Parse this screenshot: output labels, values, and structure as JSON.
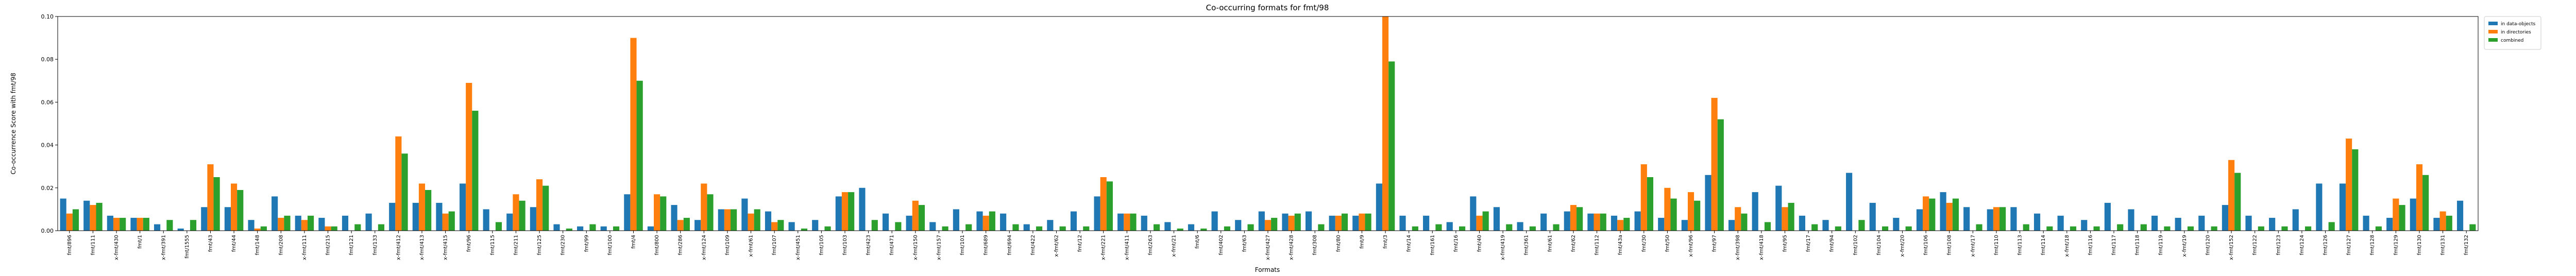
{
  "chart_data": {
    "type": "grouped_bar",
    "title": "Co-occurring formats for fmt/98",
    "x_label": "Formats",
    "y_label": "Co-occurrence Score with fmt/98",
    "categories": [
      "fmt/896",
      "fmt/111",
      "x-fmt/430",
      "fmt/1",
      "x-fmt/391",
      "fmt/1555",
      "fmt/43",
      "fmt/44",
      "fmt/148",
      "fmt/208",
      "x-fmt/111",
      "fmt/215",
      "fmt/121",
      "fmt/133",
      "x-fmt/412",
      "x-fmt/413",
      "x-fmt/415",
      "fmt/96",
      "fmt/115",
      "fmt/211",
      "fmt/125",
      "fmt/230",
      "fmt/99",
      "fmt/100",
      "fmt/4",
      "fmt/800",
      "fmt/286",
      "x-fmt/124",
      "fmt/109",
      "x-fmt/61",
      "fmt/107",
      "x-fmt/451",
      "fmt/105",
      "fmt/103",
      "fmt/423",
      "fmt/471",
      "x-fmt/150",
      "x-fmt/157",
      "fmt/101",
      "fmt/689",
      "fmt/694",
      "fmt/422",
      "x-fmt/62",
      "fmt/12",
      "x-fmt/221",
      "x-fmt/411",
      "fmt/263",
      "x-fmt/21",
      "fmt/6",
      "fmt/402",
      "fmt/63",
      "x-fmt/427",
      "x-fmt/428",
      "fmt/308",
      "fmt/80",
      "fmt/9",
      "fmt/3",
      "fmt/14",
      "fmt/161",
      "fmt/16",
      "fmt/40",
      "x-fmt/419",
      "fmt/361",
      "fmt/61",
      "fmt/62",
      "fmt/112",
      "fmt/43a",
      "fmt/30",
      "fmt/50",
      "x-fmt/96",
      "fmt/97",
      "x-fmt/398",
      "x-fmt/418",
      "fmt/95",
      "fmt/17",
      "fmt/94",
      "fmt/102",
      "fmt/104",
      "x-fmt/20",
      "fmt/106",
      "fmt/108",
      "x-fmt/17",
      "fmt/110",
      "fmt/113",
      "fmt/114",
      "x-fmt/18",
      "fmt/116",
      "fmt/117",
      "fmt/118",
      "fmt/119",
      "x-fmt/19",
      "fmt/120",
      "x-fmt/152",
      "fmt/122",
      "fmt/123",
      "fmt/124",
      "fmt/126",
      "fmt/127",
      "fmt/128",
      "fmt/129",
      "fmt/130",
      "fmt/131",
      "fmt/132"
    ],
    "series": [
      {
        "name": "in data-objects",
        "color": "#1f77b4",
        "values": [
          0.015,
          0.014,
          0.007,
          0.006,
          0.003,
          0.001,
          0.011,
          0.011,
          0.005,
          0.016,
          0.007,
          0.006,
          0.007,
          0.008,
          0.013,
          0.013,
          0.013,
          0.022,
          0.01,
          0.008,
          0.011,
          0.003,
          0.002,
          0.002,
          0.017,
          0.002,
          0.012,
          0.005,
          0.01,
          0.015,
          0.009,
          0.004,
          0.005,
          0.016,
          0.02,
          0.008,
          0.007,
          0.004,
          0.01,
          0.009,
          0.008,
          0.003,
          0.005,
          0.009,
          0.016,
          0.008,
          0.007,
          0.004,
          0.003,
          0.009,
          0.005,
          0.009,
          0.008,
          0.009,
          0.007,
          0.007,
          0.022,
          0.007,
          0.007,
          0.004,
          0.016,
          0.011,
          0.004,
          0.008,
          0.009,
          0.008,
          0.007,
          0.009,
          0.006,
          0.005,
          0.026,
          0.005,
          0.018,
          0.021,
          0.007,
          0.005,
          0.027,
          0.013,
          0.006,
          0.01,
          0.018,
          0.011,
          0.01,
          0.011,
          0.008,
          0.007,
          0.005,
          0.013,
          0.01,
          0.007,
          0.006,
          0.007,
          0.012,
          0.007,
          0.006,
          0.01,
          0.022,
          0.022,
          0.007,
          0.006,
          0.015,
          0.006,
          0.014
        ]
      },
      {
        "name": "in directories",
        "color": "#ff7f0e",
        "values": [
          0.008,
          0.012,
          0.006,
          0.006,
          0,
          0,
          0.031,
          0.022,
          0.001,
          0.006,
          0.005,
          0.002,
          0,
          0,
          0.044,
          0.022,
          0.008,
          0.069,
          0,
          0.017,
          0.024,
          0,
          0,
          0,
          0.09,
          0.017,
          0.005,
          0.022,
          0.01,
          0.008,
          0.004,
          0,
          0,
          0.018,
          0,
          0,
          0.014,
          0,
          0,
          0.007,
          0,
          0,
          0,
          0,
          0.025,
          0.008,
          0,
          0,
          0,
          0,
          0,
          0.005,
          0.007,
          0,
          0.007,
          0.008,
          0.1,
          0,
          0,
          0,
          0.007,
          0,
          0,
          0,
          0.012,
          0.008,
          0.005,
          0.031,
          0.02,
          0.018,
          0.062,
          0.011,
          0,
          0.011,
          0,
          0,
          0,
          0,
          0,
          0.016,
          0.013,
          0,
          0.011,
          0,
          0,
          0,
          0,
          0,
          0,
          0,
          0,
          0,
          0.033,
          0,
          0,
          0,
          0,
          0.043,
          0,
          0.015,
          0.031,
          0.009,
          0
        ]
      },
      {
        "name": "combined",
        "color": "#2ca02c",
        "values": [
          0.01,
          0.013,
          0.006,
          0.006,
          0.005,
          0.005,
          0.025,
          0.019,
          0.002,
          0.007,
          0.007,
          0.002,
          0.003,
          0.003,
          0.036,
          0.019,
          0.009,
          0.056,
          0.004,
          0.014,
          0.021,
          0.001,
          0.003,
          0.002,
          0.07,
          0.016,
          0.006,
          0.017,
          0.01,
          0.01,
          0.005,
          0.001,
          0.002,
          0.018,
          0.005,
          0.004,
          0.012,
          0.002,
          0.003,
          0.009,
          0.003,
          0.002,
          0.002,
          0.002,
          0.023,
          0.008,
          0.003,
          0.001,
          0.001,
          0.002,
          0.003,
          0.006,
          0.008,
          0.003,
          0.008,
          0.008,
          0.079,
          0.002,
          0.003,
          0.002,
          0.009,
          0.003,
          0.002,
          0.003,
          0.011,
          0.008,
          0.006,
          0.025,
          0.015,
          0.014,
          0.052,
          0.008,
          0.004,
          0.013,
          0.003,
          0.002,
          0.005,
          0.002,
          0.002,
          0.015,
          0.015,
          0.003,
          0.011,
          0.003,
          0.002,
          0.002,
          0.002,
          0.003,
          0.003,
          0.002,
          0.002,
          0.002,
          0.027,
          0.002,
          0.002,
          0.002,
          0.004,
          0.038,
          0.002,
          0.012,
          0.026,
          0.007,
          0.003
        ]
      }
    ],
    "ylim": [
      0,
      0.1
    ],
    "yticks": [
      {
        "value": 0,
        "label": "0.00"
      },
      {
        "value": 0.02,
        "label": "0.02"
      },
      {
        "value": 0.04,
        "label": "0.04"
      },
      {
        "value": 0.06,
        "label": "0.06"
      },
      {
        "value": 0.08,
        "label": "0.08"
      },
      {
        "value": 0.1,
        "label": "0.10"
      }
    ],
    "legend": "upper left outside"
  }
}
